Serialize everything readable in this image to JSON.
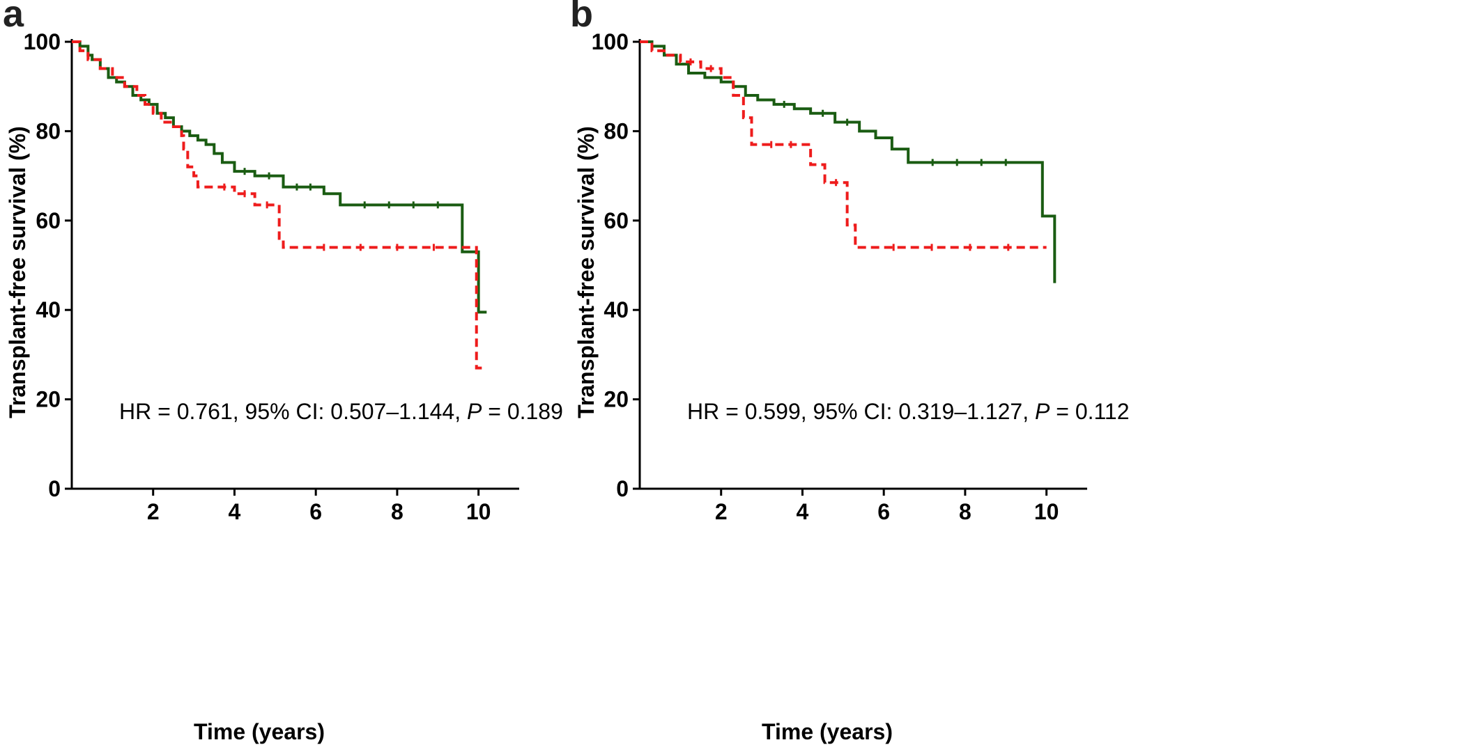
{
  "chart_data": [
    {
      "type": "line",
      "panel_label": "a",
      "xlabel": "Time (years)",
      "ylabel": "Transplant-free survival (%)",
      "xlim": [
        0,
        11
      ],
      "ylim": [
        0,
        100
      ],
      "xticks": [
        2,
        4,
        6,
        8,
        10
      ],
      "yticks": [
        0,
        20,
        40,
        60,
        80,
        100
      ],
      "annotation": {
        "hr": "HR = 0.761, 95% CI: 0.507–1.144, ",
        "p_symbol": "P",
        "p_value": " = 0.189"
      },
      "series": [
        {
          "style": "solid",
          "color": "#1a5c12",
          "x": [
            0,
            0.2,
            0.4,
            0.5,
            0.7,
            0.9,
            1.1,
            1.3,
            1.5,
            1.7,
            1.9,
            2.1,
            2.3,
            2.5,
            2.7,
            2.9,
            3.1,
            3.3,
            3.5,
            3.7,
            4.0,
            4.5,
            5.2,
            6.2,
            6.6,
            9.6,
            10.0,
            10.2
          ],
          "y": [
            100,
            99,
            97,
            96,
            94,
            92,
            91,
            90,
            88,
            87,
            86,
            84,
            83,
            81,
            80,
            79,
            78,
            77,
            75,
            73,
            71,
            70,
            67.5,
            66,
            63.5,
            53,
            39.5,
            39.5
          ]
        },
        {
          "style": "dashed",
          "color": "#ee1c1c",
          "x": [
            0,
            0.2,
            0.4,
            0.7,
            1.0,
            1.3,
            1.6,
            1.8,
            2.0,
            2.2,
            2.5,
            2.7,
            2.75,
            2.85,
            3.0,
            3.1,
            3.5,
            4.0,
            4.5,
            5.1,
            5.2,
            5.3,
            9.8,
            9.95,
            10.1
          ],
          "y": [
            100,
            98,
            96,
            94,
            92,
            90,
            88,
            86,
            84,
            82,
            81,
            79,
            76,
            72,
            70,
            67.5,
            67.5,
            66,
            63.5,
            56,
            54,
            54,
            54,
            27,
            27
          ]
        }
      ]
    },
    {
      "type": "line",
      "panel_label": "b",
      "xlabel": "Time (years)",
      "ylabel": "Transplant-free survival (%)",
      "xlim": [
        0,
        11
      ],
      "ylim": [
        0,
        100
      ],
      "xticks": [
        2,
        4,
        6,
        8,
        10
      ],
      "yticks": [
        0,
        20,
        40,
        60,
        80,
        100
      ],
      "annotation": {
        "hr": "HR = 0.599, 95% CI: 0.319–1.127, ",
        "p_symbol": "P",
        "p_value": " = 0.112"
      },
      "series": [
        {
          "style": "solid",
          "color": "#1a5c12",
          "x": [
            0,
            0.3,
            0.6,
            0.9,
            1.2,
            1.6,
            2.0,
            2.3,
            2.6,
            2.9,
            3.3,
            3.8,
            4.2,
            4.8,
            5.4,
            5.8,
            6.2,
            6.6,
            9.6,
            9.9,
            10.2
          ],
          "y": [
            100,
            99,
            97,
            95,
            93,
            92,
            91,
            90,
            88,
            87,
            86,
            85,
            84,
            82,
            80,
            78.5,
            76,
            73,
            73,
            61,
            46
          ]
        },
        {
          "style": "dashed",
          "color": "#ee1c1c",
          "x": [
            0,
            0.3,
            0.6,
            1.0,
            1.5,
            2.0,
            2.3,
            2.55,
            2.75,
            4.2,
            4.55,
            5.1,
            5.3,
            10.0
          ],
          "y": [
            100,
            98,
            97,
            95.5,
            94,
            92,
            88,
            83,
            77,
            72.5,
            68.5,
            59,
            54,
            54
          ]
        }
      ]
    }
  ]
}
